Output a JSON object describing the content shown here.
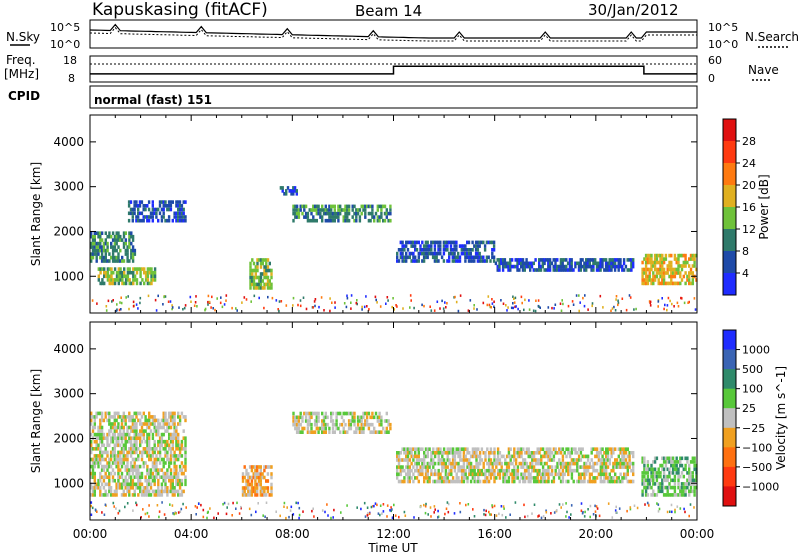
{
  "header": {
    "station": "Kapuskasing (fitACF)",
    "beam": "Beam 14",
    "date": "30/Jan/2012"
  },
  "top_panels": {
    "nsky_label": "N.Sky",
    "nsearch_label": "N.Search",
    "noise_ticks": [
      "10^5",
      "10^0"
    ],
    "freq_label_1": "Freq.",
    "freq_label_2": "[MHz]",
    "freq_ticks": [
      "18",
      "8"
    ],
    "nave_label": "Nave",
    "nave_ticks": [
      "60",
      "0"
    ],
    "cpid_label": "CPID",
    "cpid_value": "normal (fast) 151",
    "freq_steps": [
      {
        "t_hours": 0.0,
        "mhz": 10.3
      },
      {
        "t_hours": 12.0,
        "mhz": 14.5
      },
      {
        "t_hours": 21.9,
        "mhz": 10.3
      },
      {
        "t_hours": 24.0,
        "mhz": 10.3
      }
    ]
  },
  "chart_data": [
    {
      "type": "heatmap",
      "panel": "power",
      "ylabel": "Slant Range [km]",
      "ylim": [
        180,
        4600
      ],
      "yticks": [
        "1000",
        "2000",
        "3000",
        "4000"
      ],
      "xlim_hours": [
        0,
        24
      ],
      "colorbar_label": "Power [dB]",
      "colorbar_ticks": [
        "4",
        "8",
        "12",
        "16",
        "20",
        "24",
        "28"
      ],
      "colors": [
        "#1f2cff",
        "#1e4aa8",
        "#2f7a6a",
        "#6fc23a",
        "#e0b020",
        "#ff7a10",
        "#ff3a10",
        "#e01010"
      ],
      "echo_bands": [
        {
          "t0": 0.0,
          "t1": 1.8,
          "r0": 1300,
          "r1": 2000,
          "c": 2
        },
        {
          "t0": 0.3,
          "t1": 2.6,
          "r0": 800,
          "r1": 1200,
          "c": 3
        },
        {
          "t0": 1.5,
          "t1": 3.8,
          "r0": 2200,
          "r1": 2700,
          "c": 1
        },
        {
          "t0": 6.3,
          "t1": 7.2,
          "r0": 700,
          "r1": 1400,
          "c": 3
        },
        {
          "t0": 7.5,
          "t1": 8.2,
          "r0": 2800,
          "r1": 3000,
          "c": 1
        },
        {
          "t0": 8.0,
          "t1": 11.9,
          "r0": 2200,
          "r1": 2600,
          "c": 2
        },
        {
          "t0": 12.1,
          "t1": 16.0,
          "r0": 1300,
          "r1": 1800,
          "c": 1
        },
        {
          "t0": 16.0,
          "t1": 21.5,
          "r0": 1100,
          "r1": 1400,
          "c": 1
        },
        {
          "t0": 21.8,
          "t1": 24.0,
          "r0": 800,
          "r1": 1500,
          "c": 4
        }
      ]
    },
    {
      "type": "heatmap",
      "panel": "velocity",
      "ylabel": "Slant Range [km]",
      "ylim": [
        180,
        4600
      ],
      "yticks": [
        "1000",
        "2000",
        "3000",
        "4000"
      ],
      "xlabel": "Time UT",
      "xticks": [
        "00:00",
        "04:00",
        "08:00",
        "12:00",
        "16:00",
        "20:00",
        "00:00"
      ],
      "xlim_hours": [
        0,
        24
      ],
      "colorbar_label": "Velocity [m s^-1]",
      "colorbar_ticks": [
        "1000",
        "500",
        "100",
        "25",
        "−25",
        "−100",
        "−500",
        "−1000"
      ],
      "colors": [
        "#1f2cff",
        "#3a64b4",
        "#2f8a6a",
        "#58c83a",
        "#c0c0c0",
        "#f0a020",
        "#ff7010",
        "#ff3a10",
        "#e01010"
      ],
      "echo_bands": [
        {
          "t0": 0.0,
          "t1": 3.8,
          "r0": 700,
          "r1": 2600,
          "c": 4
        },
        {
          "t0": 6.0,
          "t1": 7.2,
          "r0": 700,
          "r1": 1400,
          "c": 5
        },
        {
          "t0": 8.0,
          "t1": 11.9,
          "r0": 2100,
          "r1": 2600,
          "c": 4
        },
        {
          "t0": 12.1,
          "t1": 21.5,
          "r0": 1000,
          "r1": 1800,
          "c": 4
        },
        {
          "t0": 21.8,
          "t1": 24.0,
          "r0": 700,
          "r1": 1600,
          "c": 3
        }
      ]
    }
  ]
}
